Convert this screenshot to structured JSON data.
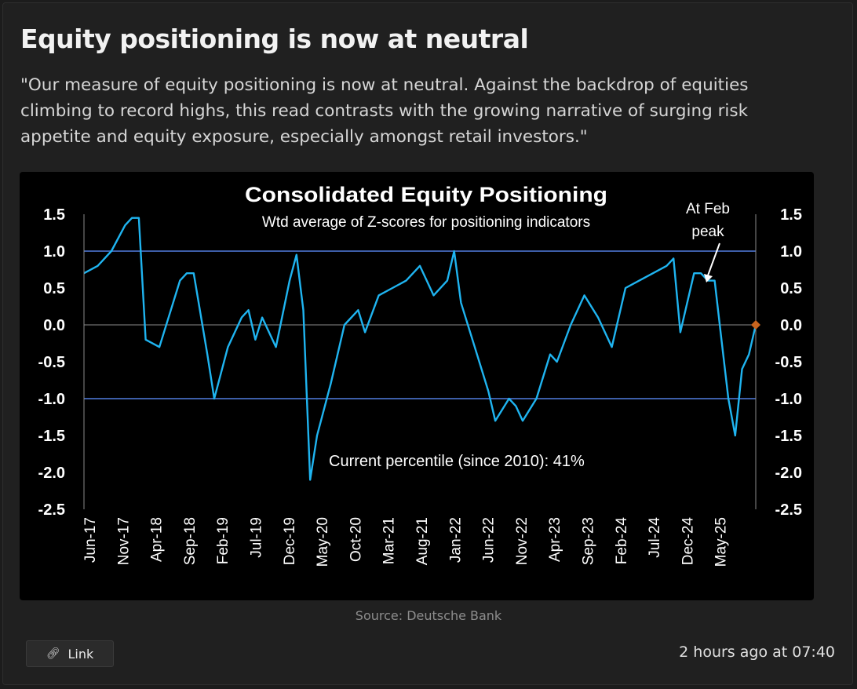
{
  "post": {
    "headline": "Equity positioning is now at neutral",
    "quote": "\"Our measure of equity positioning is now at neutral. Against the backdrop of equities climbing to record highs, this read contrasts with the growing narrative of surging risk appetite and equity exposure, especially amongst retail investors.\"",
    "source": "Source: Deutsche Bank",
    "link_label": "Link",
    "link_icon": "link-icon",
    "timestamp": "2 hours ago at 07:40"
  },
  "colors": {
    "series": "#1fb4f0",
    "threshold_lines": "#3d5ea8",
    "current_marker": "#c8641e",
    "chart_bg": "#000000"
  },
  "chart_data": {
    "type": "line",
    "title": "Consolidated Equity Positioning",
    "subtitle": "Wtd average of Z-scores for positioning indicators",
    "annotations": [
      "At Feb peak",
      "Current percentile (since 2010): 41%"
    ],
    "y_axis_left_ticks": [
      "1.5",
      "1.0",
      "0.5",
      "0.0",
      "-0.5",
      "-1.0",
      "-1.5",
      "-2.0",
      "-2.5"
    ],
    "y_axis_right_ticks": [
      "1.5",
      "1.0",
      "0.5",
      "0.0",
      "-0.5",
      "-1.0",
      "-1.5",
      "-2.0",
      "-2.5"
    ],
    "x_tick_labels": [
      "Jun-17",
      "Nov-17",
      "Apr-18",
      "Sep-18",
      "Feb-19",
      "Jul-19",
      "Dec-19",
      "May-20",
      "Oct-20",
      "Mar-21",
      "Aug-21",
      "Jan-22",
      "Jun-22",
      "Nov-22",
      "Apr-23",
      "Sep-23",
      "Feb-24",
      "Jul-24",
      "Dec-24",
      "May-25"
    ],
    "ylim": [
      -2.5,
      1.5
    ],
    "xlim": [
      "2017-06",
      "2025-08"
    ],
    "reference_lines": [
      1.0,
      0.0,
      -1.0
    ],
    "grid": false,
    "series": [
      {
        "x": [
          "2017-06",
          "2017-08",
          "2017-10",
          "2017-12",
          "2018-01",
          "2018-02",
          "2018-03",
          "2018-05",
          "2018-07",
          "2018-08",
          "2018-09",
          "2018-10",
          "2018-12",
          "2019-01",
          "2019-03",
          "2019-05",
          "2019-06",
          "2019-07",
          "2019-08",
          "2019-10",
          "2019-12",
          "2020-01",
          "2020-02",
          "2020-03",
          "2020-04",
          "2020-06",
          "2020-08",
          "2020-10",
          "2020-11",
          "2021-01",
          "2021-03",
          "2021-05",
          "2021-07",
          "2021-09",
          "2021-11",
          "2021-12",
          "2022-01",
          "2022-03",
          "2022-05",
          "2022-06",
          "2022-08",
          "2022-09",
          "2022-10",
          "2022-12",
          "2023-02",
          "2023-03",
          "2023-05",
          "2023-07",
          "2023-09",
          "2023-11",
          "2024-01",
          "2024-03",
          "2024-05",
          "2024-07",
          "2024-08",
          "2024-09",
          "2024-11",
          "2024-12",
          "2025-01",
          "2025-02",
          "2025-03",
          "2025-04",
          "2025-05",
          "2025-06",
          "2025-07",
          "2025-08"
        ],
        "y": [
          0.7,
          0.8,
          1.0,
          1.35,
          1.45,
          1.45,
          -0.2,
          -0.3,
          0.3,
          0.6,
          0.7,
          0.7,
          -0.4,
          -1.0,
          -0.3,
          0.1,
          0.2,
          -0.2,
          0.1,
          -0.3,
          0.6,
          0.95,
          0.2,
          -2.1,
          -1.5,
          -0.8,
          0.0,
          0.2,
          -0.1,
          0.4,
          0.5,
          0.6,
          0.8,
          0.4,
          0.6,
          1.0,
          0.3,
          -0.3,
          -0.9,
          -1.3,
          -1.0,
          -1.1,
          -1.3,
          -1.0,
          -0.4,
          -0.5,
          0.0,
          0.4,
          0.1,
          -0.3,
          0.5,
          0.6,
          0.7,
          0.8,
          0.9,
          -0.1,
          0.7,
          0.7,
          0.6,
          0.6,
          -0.2,
          -1.0,
          -1.5,
          -0.6,
          -0.4,
          0.0
        ]
      }
    ],
    "current_value": 0.0
  }
}
